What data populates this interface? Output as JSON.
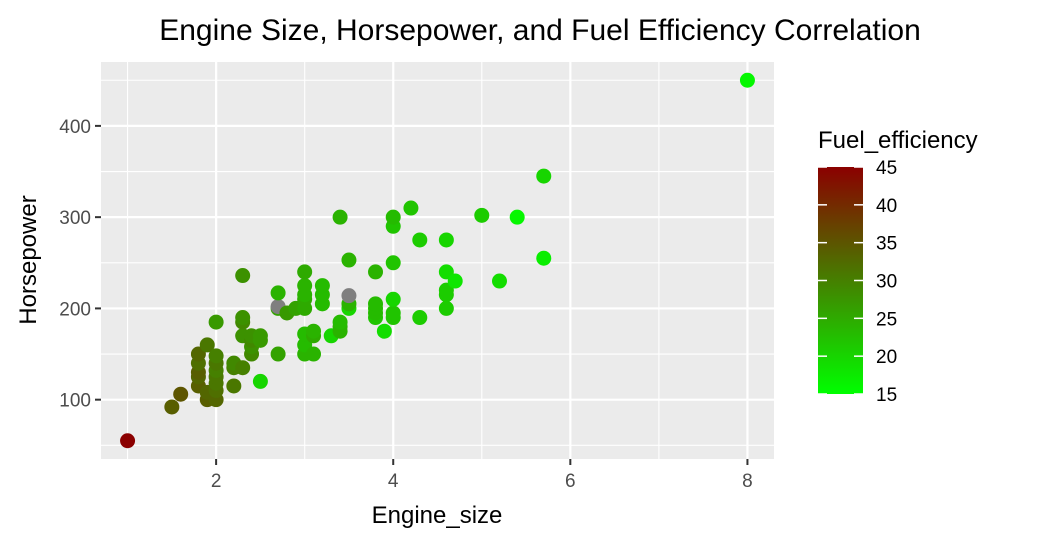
{
  "chart_data": {
    "type": "scatter",
    "title": "Engine Size, Horsepower, and Fuel Efficiency Correlation",
    "xlabel": "Engine_size",
    "ylabel": "Horsepower",
    "xlim": [
      0.7,
      8.3
    ],
    "ylim": [
      35,
      470
    ],
    "xticks": [
      2,
      4,
      6,
      8
    ],
    "yticks": [
      100,
      200,
      300,
      400
    ],
    "grid": true,
    "legend": {
      "title": "Fuel_efficiency",
      "type": "colorbar",
      "range": [
        15,
        45
      ],
      "ticks": [
        15,
        20,
        25,
        30,
        35,
        40,
        45
      ],
      "low_color": "#00ff00",
      "high_color": "#8b0000",
      "placement": "right"
    },
    "na_color": "#7f7f7f",
    "points": [
      {
        "x": 1.0,
        "y": 55,
        "c": 45
      },
      {
        "x": 1.5,
        "y": 92,
        "c": 34
      },
      {
        "x": 1.6,
        "y": 106,
        "c": 35
      },
      {
        "x": 1.8,
        "y": 115,
        "c": 34
      },
      {
        "x": 1.8,
        "y": 125,
        "c": 33
      },
      {
        "x": 1.8,
        "y": 130,
        "c": 34
      },
      {
        "x": 1.8,
        "y": 140,
        "c": 32
      },
      {
        "x": 1.8,
        "y": 150,
        "c": 33
      },
      {
        "x": 1.9,
        "y": 100,
        "c": 34
      },
      {
        "x": 1.9,
        "y": 108,
        "c": 33
      },
      {
        "x": 1.9,
        "y": 160,
        "c": 31
      },
      {
        "x": 2.0,
        "y": 100,
        "c": 33
      },
      {
        "x": 2.0,
        "y": 110,
        "c": 32
      },
      {
        "x": 2.0,
        "y": 118,
        "c": 31
      },
      {
        "x": 2.0,
        "y": 125,
        "c": 31
      },
      {
        "x": 2.0,
        "y": 132,
        "c": 30
      },
      {
        "x": 2.0,
        "y": 140,
        "c": 31
      },
      {
        "x": 2.0,
        "y": 148,
        "c": 30
      },
      {
        "x": 2.0,
        "y": 185,
        "c": 27
      },
      {
        "x": 2.2,
        "y": 115,
        "c": 31
      },
      {
        "x": 2.2,
        "y": 135,
        "c": 30
      },
      {
        "x": 2.2,
        "y": 140,
        "c": 29
      },
      {
        "x": 2.3,
        "y": 135,
        "c": 30
      },
      {
        "x": 2.3,
        "y": 170,
        "c": 28
      },
      {
        "x": 2.3,
        "y": 185,
        "c": 29
      },
      {
        "x": 2.3,
        "y": 190,
        "c": 28
      },
      {
        "x": 2.3,
        "y": 236,
        "c": 28
      },
      {
        "x": 2.4,
        "y": 150,
        "c": 29
      },
      {
        "x": 2.4,
        "y": 158,
        "c": 28
      },
      {
        "x": 2.4,
        "y": 165,
        "c": 29
      },
      {
        "x": 2.4,
        "y": 170,
        "c": 28
      },
      {
        "x": 2.5,
        "y": 120,
        "c": 20
      },
      {
        "x": 2.5,
        "y": 165,
        "c": 27
      },
      {
        "x": 2.5,
        "y": 170,
        "c": 27
      },
      {
        "x": 2.7,
        "y": 150,
        "c": 26
      },
      {
        "x": 2.7,
        "y": 200,
        "c": 26
      },
      {
        "x": 2.7,
        "y": 202
      },
      {
        "x": 2.7,
        "y": 217,
        "c": 24
      },
      {
        "x": 2.8,
        "y": 195,
        "c": 27
      },
      {
        "x": 2.9,
        "y": 200,
        "c": 26
      },
      {
        "x": 3.0,
        "y": 150,
        "c": 24
      },
      {
        "x": 3.0,
        "y": 160,
        "c": 23
      },
      {
        "x": 3.0,
        "y": 172,
        "c": 23
      },
      {
        "x": 3.0,
        "y": 200,
        "c": 25
      },
      {
        "x": 3.0,
        "y": 210,
        "c": 25
      },
      {
        "x": 3.0,
        "y": 215,
        "c": 24
      },
      {
        "x": 3.0,
        "y": 225,
        "c": 24
      },
      {
        "x": 3.0,
        "y": 240,
        "c": 25
      },
      {
        "x": 3.1,
        "y": 150,
        "c": 24
      },
      {
        "x": 3.1,
        "y": 170,
        "c": 25
      },
      {
        "x": 3.1,
        "y": 175,
        "c": 24
      },
      {
        "x": 3.2,
        "y": 205,
        "c": 23
      },
      {
        "x": 3.2,
        "y": 215,
        "c": 23
      },
      {
        "x": 3.2,
        "y": 225,
        "c": 23
      },
      {
        "x": 3.3,
        "y": 170,
        "c": 20
      },
      {
        "x": 3.4,
        "y": 175,
        "c": 24
      },
      {
        "x": 3.4,
        "y": 180,
        "c": 24
      },
      {
        "x": 3.4,
        "y": 185,
        "c": 23
      },
      {
        "x": 3.4,
        "y": 300,
        "c": 24
      },
      {
        "x": 3.5,
        "y": 200,
        "c": 20
      },
      {
        "x": 3.5,
        "y": 205,
        "c": 24
      },
      {
        "x": 3.5,
        "y": 214
      },
      {
        "x": 3.5,
        "y": 253,
        "c": 24
      },
      {
        "x": 3.8,
        "y": 190,
        "c": 22
      },
      {
        "x": 3.8,
        "y": 195,
        "c": 23
      },
      {
        "x": 3.8,
        "y": 200,
        "c": 23
      },
      {
        "x": 3.8,
        "y": 205,
        "c": 23
      },
      {
        "x": 3.8,
        "y": 240,
        "c": 24
      },
      {
        "x": 3.9,
        "y": 175,
        "c": 19
      },
      {
        "x": 4.0,
        "y": 190,
        "c": 22
      },
      {
        "x": 4.0,
        "y": 195,
        "c": 22
      },
      {
        "x": 4.0,
        "y": 210,
        "c": 20
      },
      {
        "x": 4.0,
        "y": 250,
        "c": 22
      },
      {
        "x": 4.0,
        "y": 290,
        "c": 22
      },
      {
        "x": 4.0,
        "y": 300,
        "c": 23
      },
      {
        "x": 4.2,
        "y": 310,
        "c": 22
      },
      {
        "x": 4.3,
        "y": 190,
        "c": 21
      },
      {
        "x": 4.3,
        "y": 275,
        "c": 21
      },
      {
        "x": 4.6,
        "y": 200,
        "c": 21
      },
      {
        "x": 4.6,
        "y": 215,
        "c": 21
      },
      {
        "x": 4.6,
        "y": 220,
        "c": 21
      },
      {
        "x": 4.6,
        "y": 240,
        "c": 19
      },
      {
        "x": 4.6,
        "y": 275,
        "c": 20
      },
      {
        "x": 4.7,
        "y": 230,
        "c": 18
      },
      {
        "x": 5.0,
        "y": 302,
        "c": 21
      },
      {
        "x": 5.2,
        "y": 230,
        "c": 19
      },
      {
        "x": 5.4,
        "y": 300,
        "c": 16
      },
      {
        "x": 5.7,
        "y": 255,
        "c": 17
      },
      {
        "x": 5.7,
        "y": 345,
        "c": 20
      },
      {
        "x": 8.0,
        "y": 450,
        "c": 16
      }
    ]
  }
}
